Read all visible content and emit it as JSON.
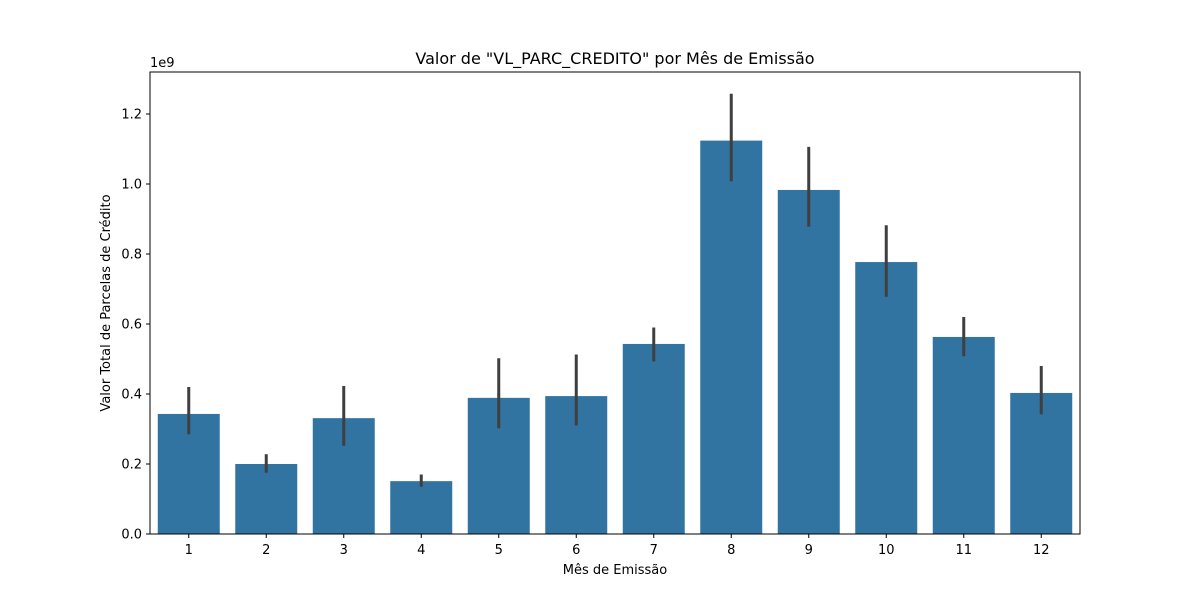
{
  "chart_data": {
    "type": "bar",
    "title": "Valor de \"VL_PARC_CREDITO\" por Mês de Emissão",
    "xlabel": "Mês de Emissão",
    "ylabel": "Valor Total de Parcelas de Crédito",
    "scale_note": "1e9",
    "categories": [
      "1",
      "2",
      "3",
      "4",
      "5",
      "6",
      "7",
      "8",
      "9",
      "10",
      "11",
      "12"
    ],
    "values": [
      0.343,
      0.2,
      0.331,
      0.151,
      0.389,
      0.394,
      0.543,
      1.124,
      0.983,
      0.777,
      0.563,
      0.403
    ],
    "error_low": [
      0.285,
      0.175,
      0.252,
      0.135,
      0.302,
      0.31,
      0.493,
      1.008,
      0.878,
      0.678,
      0.508,
      0.342
    ],
    "error_high": [
      0.42,
      0.228,
      0.423,
      0.17,
      0.502,
      0.513,
      0.59,
      1.258,
      1.106,
      0.882,
      0.62,
      0.48
    ],
    "ylim": [
      0,
      1.32
    ],
    "yticks": [
      0.0,
      0.2,
      0.4,
      0.6,
      0.8,
      1.0,
      1.2
    ],
    "ytick_labels": [
      "0.0",
      "0.2",
      "0.4",
      "0.6",
      "0.8",
      "1.0",
      "1.2"
    ],
    "bar_color": "#3274a1",
    "errorbar_color": "#3f3f3f",
    "grid": false
  }
}
